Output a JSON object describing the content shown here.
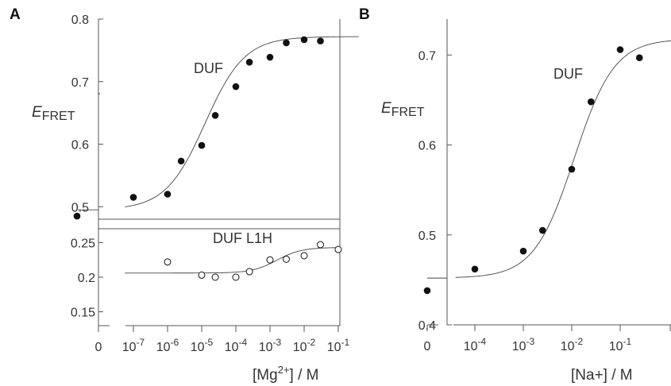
{
  "chart_data": [
    {
      "panel": "A",
      "type": "scatter",
      "x_scale": "log",
      "xlabel": "[Mg2+] / M",
      "ylabel": "EFRET",
      "x_tick_labels": [
        "0",
        "10-7",
        "10-6",
        "10-5",
        "10-4",
        "10-3",
        "10-2",
        "10-1"
      ],
      "subplots": [
        {
          "name": "DUF",
          "marker": "filled",
          "ylim": [
            0.48,
            0.8
          ],
          "y_ticks": [
            0.5,
            0.6,
            0.7,
            0.8
          ],
          "zero_point": {
            "x": 0,
            "y": 0.485
          },
          "points": [
            {
              "x": 1e-07,
              "y": 0.515
            },
            {
              "x": 1e-06,
              "y": 0.52
            },
            {
              "x": 2.5e-06,
              "y": 0.573
            },
            {
              "x": 1e-05,
              "y": 0.598
            },
            {
              "x": 2.5e-05,
              "y": 0.646
            },
            {
              "x": 0.0001,
              "y": 0.692
            },
            {
              "x": 0.00025,
              "y": 0.731
            },
            {
              "x": 0.001,
              "y": 0.739
            },
            {
              "x": 0.003,
              "y": 0.762
            },
            {
              "x": 0.01,
              "y": 0.767
            },
            {
              "x": 0.03,
              "y": 0.765
            }
          ],
          "fit": {
            "bottom": 0.495,
            "top": 0.772,
            "log_x_mid": -4.9,
            "slope": 0.75
          }
        },
        {
          "name": "DUF L1H",
          "marker": "open",
          "ylim": [
            0.13,
            0.27
          ],
          "y_ticks": [
            0.15,
            0.2,
            0.25
          ],
          "points": [
            {
              "x": 1e-06,
              "y": 0.222
            },
            {
              "x": 1e-05,
              "y": 0.203
            },
            {
              "x": 2.5e-05,
              "y": 0.2
            },
            {
              "x": 0.0001,
              "y": 0.2
            },
            {
              "x": 0.00025,
              "y": 0.208
            },
            {
              "x": 0.001,
              "y": 0.225
            },
            {
              "x": 0.003,
              "y": 0.226
            },
            {
              "x": 0.01,
              "y": 0.231
            },
            {
              "x": 0.03,
              "y": 0.247
            },
            {
              "x": 0.1,
              "y": 0.24
            }
          ],
          "fit": {
            "bottom": 0.206,
            "top": 0.243,
            "log_x_mid": -2.8,
            "slope": 1.2
          }
        }
      ]
    },
    {
      "panel": "B",
      "type": "scatter",
      "x_scale": "log",
      "xlabel": "[Na+] / M",
      "ylabel": "EFRET",
      "x_tick_labels": [
        "0",
        "10-4",
        "10-3",
        "10-2",
        "10-1"
      ],
      "ylim": [
        0.4,
        0.74
      ],
      "y_ticks": [
        0.4,
        0.5,
        0.6,
        0.7
      ],
      "series": [
        {
          "name": "DUF",
          "marker": "filled",
          "zero_point": {
            "x": 0,
            "y": 0.438
          },
          "points": [
            {
              "x": 0.0001,
              "y": 0.462
            },
            {
              "x": 0.001,
              "y": 0.482
            },
            {
              "x": 0.0025,
              "y": 0.505
            },
            {
              "x": 0.01,
              "y": 0.573
            },
            {
              "x": 0.025,
              "y": 0.648
            },
            {
              "x": 0.1,
              "y": 0.706
            },
            {
              "x": 0.25,
              "y": 0.697
            }
          ],
          "fit": {
            "bottom": 0.452,
            "top": 0.718,
            "log_x_mid": -1.95,
            "slope": 1.05
          }
        }
      ]
    }
  ],
  "labels": {
    "panel_a": "A",
    "panel_b": "B",
    "a_top_series": "DUF",
    "a_bottom_series": "DUF L1H",
    "b_series": "DUF",
    "y_symbol": "E",
    "y_sub": "FRET",
    "a_xlabel_pre": "[Mg",
    "a_xlabel_sup": "2+",
    "a_xlabel_post": "] / M",
    "b_xlabel": "[Na+] / M",
    "a_top_yticks": [
      "0.8",
      "0.7",
      "0.6",
      "0.5"
    ],
    "a_bottom_yticks": [
      "0.25",
      "0.2",
      "0.15"
    ],
    "b_yticks": [
      "0.7",
      "0.6",
      "0.5",
      "0.4"
    ],
    "a_xticks": [
      {
        "base": "0"
      },
      {
        "base": "10",
        "exp": "-7"
      },
      {
        "base": "10",
        "exp": "-6"
      },
      {
        "base": "10",
        "exp": "-5"
      },
      {
        "base": "10",
        "exp": "-4"
      },
      {
        "base": "10",
        "exp": "-3"
      },
      {
        "base": "10",
        "exp": "-2"
      },
      {
        "base": "10",
        "exp": "-1"
      }
    ],
    "b_xticks": [
      {
        "base": "0"
      },
      {
        "base": "10",
        "exp": "-4"
      },
      {
        "base": "10",
        "exp": "-3"
      },
      {
        "base": "10",
        "exp": "-2"
      },
      {
        "base": "10",
        "exp": "-1"
      }
    ]
  },
  "colors": {
    "marker": "#111111",
    "axis": "#555555",
    "curve": "#444444",
    "text": "#333333"
  }
}
